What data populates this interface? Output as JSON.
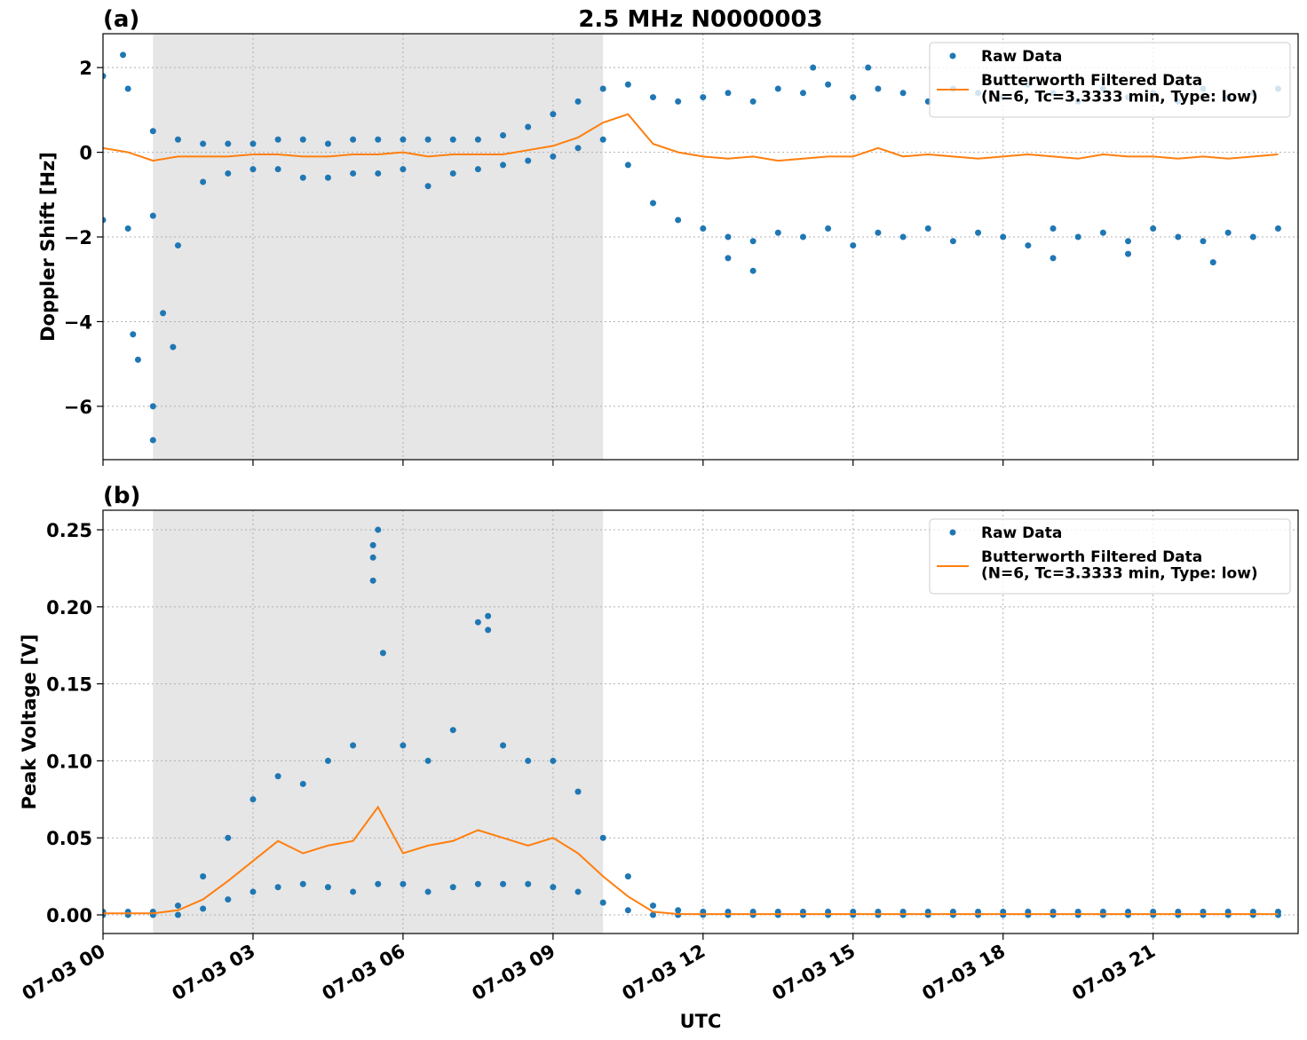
{
  "chart_data": [
    {
      "type": "scatter",
      "title": "2.5 MHz N0000003",
      "panel_label": "(a)",
      "y_label": "Doppler Shift [Hz]",
      "xlim": [
        0,
        23.9
      ],
      "ylim": [
        -7.26,
        2.8
      ],
      "xticks": [
        {
          "value": 0,
          "label": "07-03 00"
        },
        {
          "value": 3,
          "label": "07-03 03"
        },
        {
          "value": 6,
          "label": "07-03 06"
        },
        {
          "value": 9,
          "label": "07-03 09"
        },
        {
          "value": 12,
          "label": "07-03 12"
        },
        {
          "value": 15,
          "label": "07-03 15"
        },
        {
          "value": 18,
          "label": "07-03 18"
        },
        {
          "value": 21,
          "label": "07-03 21"
        }
      ],
      "xticklabels_visible": false,
      "yticks": [
        {
          "value": -6,
          "label": "−6"
        },
        {
          "value": -4,
          "label": "−4"
        },
        {
          "value": -2,
          "label": "−2"
        },
        {
          "value": 0,
          "label": "0"
        },
        {
          "value": 2,
          "label": "2"
        }
      ],
      "grid": true,
      "legend": "upper right",
      "shade": {
        "x0": 1.0,
        "x1": 10.0,
        "color": "#e6e6e6"
      },
      "series": [
        {
          "name": "Raw Data",
          "color": "#1f77b4",
          "style": "points",
          "x": [
            0,
            0.5,
            1,
            1.5,
            2,
            2.5,
            3,
            3.5,
            4,
            4.5,
            5,
            5.5,
            6,
            6.5,
            7,
            7.5,
            8,
            8.5,
            9,
            9.5,
            10,
            10.5,
            11,
            11.5,
            12,
            12.5,
            13,
            13.5,
            14,
            14.5,
            15,
            15.5,
            16,
            16.5,
            17,
            17.5,
            18,
            18.5,
            19,
            19.5,
            20,
            20.5,
            21,
            21.5,
            22,
            22.5,
            23,
            23.5,
            0,
            0.5,
            1,
            1.5,
            2,
            2.5,
            3,
            3.5,
            4,
            4.5,
            5,
            5.5,
            6,
            6.5,
            7,
            7.5,
            8,
            8.5,
            9,
            9.5,
            10,
            10.5,
            11,
            11.5,
            12,
            12.5,
            13,
            13.5,
            14,
            14.5,
            15,
            15.5,
            16,
            16.5,
            17,
            17.5,
            18,
            18.5,
            19,
            19.5,
            20,
            20.5,
            21,
            21.5,
            22,
            22.5,
            23,
            23.5,
            0.4,
            0.6,
            0.7,
            1.0,
            1.0,
            1.2,
            1.4,
            12.5,
            13.0,
            14.2,
            15.3,
            19.0,
            20.5,
            22.2
          ],
          "values": [
            1.8,
            1.5,
            0.5,
            0.3,
            0.2,
            0.2,
            0.2,
            0.3,
            0.3,
            0.2,
            0.3,
            0.3,
            0.3,
            0.3,
            0.3,
            0.3,
            0.4,
            0.6,
            0.9,
            1.2,
            1.5,
            1.6,
            1.3,
            1.2,
            1.3,
            1.4,
            1.2,
            1.5,
            1.4,
            1.6,
            1.3,
            1.5,
            1.4,
            1.2,
            1.5,
            1.4,
            1.3,
            1.6,
            1.4,
            1.2,
            1.5,
            1.3,
            1.4,
            1.2,
            1.5,
            1.3,
            1.4,
            1.5,
            -1.6,
            -1.8,
            -1.5,
            -2.2,
            -0.7,
            -0.5,
            -0.4,
            -0.4,
            -0.6,
            -0.6,
            -0.5,
            -0.5,
            -0.4,
            -0.8,
            -0.5,
            -0.4,
            -0.3,
            -0.2,
            -0.1,
            0.1,
            0.3,
            -0.3,
            -1.2,
            -1.6,
            -1.8,
            -2.0,
            -2.1,
            -1.9,
            -2.0,
            -1.8,
            -2.2,
            -1.9,
            -2.0,
            -1.8,
            -2.1,
            -1.9,
            -2.0,
            -2.2,
            -1.8,
            -2.0,
            -1.9,
            -2.1,
            -1.8,
            -2.0,
            -2.1,
            -1.9,
            -2.0,
            -1.8,
            2.3,
            -4.3,
            -4.9,
            -6.8,
            -6.0,
            -3.8,
            -4.6,
            -2.5,
            -2.8,
            2.0,
            2.0,
            -2.5,
            -2.4,
            -2.6
          ]
        },
        {
          "name": "Butterworth Filtered Data\n(N=6, Tc=3.3333 min, Type: low)",
          "color": "#ff7f0e",
          "style": "line",
          "x": [
            0,
            0.5,
            1,
            1.5,
            2,
            2.5,
            3,
            3.5,
            4,
            4.5,
            5,
            5.5,
            6,
            6.5,
            7,
            7.5,
            8,
            8.5,
            9,
            9.5,
            10,
            10.5,
            11,
            11.5,
            12,
            12.5,
            13,
            13.5,
            14,
            14.5,
            15,
            15.5,
            16,
            16.5,
            17,
            17.5,
            18,
            18.5,
            19,
            19.5,
            20,
            20.5,
            21,
            21.5,
            22,
            22.5,
            23,
            23.5
          ],
          "values": [
            0.1,
            0.0,
            -0.2,
            -0.1,
            -0.1,
            -0.1,
            -0.05,
            -0.05,
            -0.1,
            -0.1,
            -0.05,
            -0.05,
            0.0,
            -0.1,
            -0.05,
            -0.05,
            -0.05,
            0.05,
            0.15,
            0.35,
            0.7,
            0.9,
            0.2,
            0.0,
            -0.1,
            -0.15,
            -0.1,
            -0.2,
            -0.15,
            -0.1,
            -0.1,
            0.1,
            -0.1,
            -0.05,
            -0.1,
            -0.15,
            -0.1,
            -0.05,
            -0.1,
            -0.15,
            -0.05,
            -0.1,
            -0.1,
            -0.15,
            -0.1,
            -0.15,
            -0.1,
            -0.05
          ]
        }
      ]
    },
    {
      "type": "scatter",
      "panel_label": "(b)",
      "y_label": "Peak Voltage [V]",
      "x_label": "UTC",
      "xlim": [
        0,
        23.9
      ],
      "ylim": [
        -0.0121,
        0.2627
      ],
      "xticks": [
        {
          "value": 0,
          "label": "07-03 00"
        },
        {
          "value": 3,
          "label": "07-03 03"
        },
        {
          "value": 6,
          "label": "07-03 06"
        },
        {
          "value": 9,
          "label": "07-03 09"
        },
        {
          "value": 12,
          "label": "07-03 12"
        },
        {
          "value": 15,
          "label": "07-03 15"
        },
        {
          "value": 18,
          "label": "07-03 18"
        },
        {
          "value": 21,
          "label": "07-03 21"
        }
      ],
      "xticklabels_visible": true,
      "yticks": [
        {
          "value": 0,
          "label": "0.00"
        },
        {
          "value": 0.05,
          "label": "0.05"
        },
        {
          "value": 0.1,
          "label": "0.10"
        },
        {
          "value": 0.15,
          "label": "0.15"
        },
        {
          "value": 0.2,
          "label": "0.20"
        },
        {
          "value": 0.25,
          "label": "0.25"
        }
      ],
      "grid": true,
      "legend": "upper right",
      "shade": {
        "x0": 1.0,
        "x1": 10.0,
        "color": "#e6e6e6"
      },
      "series": [
        {
          "name": "Raw Data",
          "color": "#1f77b4",
          "style": "points",
          "x": [
            0,
            0.5,
            1,
            1.5,
            2,
            2.5,
            3,
            3.5,
            4,
            4.5,
            5,
            5.5,
            6,
            6.5,
            7,
            7.5,
            8,
            8.5,
            9,
            9.5,
            10,
            10.5,
            11,
            11.5,
            12,
            12.5,
            13,
            13.5,
            14,
            14.5,
            15,
            15.5,
            16,
            16.5,
            17,
            17.5,
            18,
            18.5,
            19,
            19.5,
            20,
            20.5,
            21,
            21.5,
            22,
            22.5,
            23,
            23.5,
            0,
            0.5,
            1,
            1.5,
            2,
            2.5,
            3,
            3.5,
            4,
            4.5,
            5,
            5.5,
            6,
            6.5,
            7,
            7.5,
            8,
            8.5,
            9,
            9.5,
            10,
            10.5,
            11,
            11.5,
            12,
            12.5,
            13,
            13.5,
            14,
            14.5,
            15,
            15.5,
            16,
            16.5,
            17,
            17.5,
            18,
            18.5,
            19,
            19.5,
            20,
            20.5,
            21,
            21.5,
            22,
            22.5,
            23,
            23.5,
            5.4,
            5.4,
            5.4,
            7.7,
            7.7,
            5.6
          ],
          "values": [
            0.002,
            0.002,
            0.002,
            0.006,
            0.025,
            0.05,
            0.075,
            0.09,
            0.085,
            0.1,
            0.11,
            0.25,
            0.11,
            0.1,
            0.12,
            0.19,
            0.11,
            0.1,
            0.1,
            0.08,
            0.05,
            0.025,
            0.006,
            0.003,
            0.002,
            0.002,
            0.002,
            0.002,
            0.002,
            0.002,
            0.002,
            0.002,
            0.002,
            0.002,
            0.002,
            0.002,
            0.002,
            0.002,
            0.002,
            0.002,
            0.002,
            0.002,
            0.002,
            0.002,
            0.002,
            0.002,
            0.002,
            0.002,
            0,
            0,
            0,
            0,
            0.004,
            0.01,
            0.015,
            0.018,
            0.02,
            0.018,
            0.015,
            0.02,
            0.02,
            0.015,
            0.018,
            0.02,
            0.02,
            0.02,
            0.018,
            0.015,
            0.008,
            0.003,
            0,
            0,
            0,
            0,
            0,
            0,
            0,
            0,
            0,
            0,
            0,
            0,
            0,
            0,
            0,
            0,
            0,
            0,
            0,
            0,
            0,
            0,
            0,
            0,
            0,
            0,
            0.24,
            0.232,
            0.217,
            0.194,
            0.185,
            0.17
          ]
        },
        {
          "name": "Butterworth Filtered Data\n(N=6, Tc=3.3333 min, Type: low)",
          "color": "#ff7f0e",
          "style": "line",
          "x": [
            0,
            0.5,
            1,
            1.5,
            2,
            2.5,
            3,
            3.5,
            4,
            4.5,
            5,
            5.5,
            6,
            6.5,
            7,
            7.5,
            8,
            8.5,
            9,
            9.5,
            10,
            10.5,
            11,
            11.5,
            12,
            12.5,
            13,
            13.5,
            14,
            14.5,
            15,
            15.5,
            16,
            16.5,
            17,
            17.5,
            18,
            18.5,
            19,
            19.5,
            20,
            20.5,
            21,
            21.5,
            22,
            22.5,
            23,
            23.5
          ],
          "values": [
            0.001,
            0.001,
            0.001,
            0.003,
            0.01,
            0.022,
            0.035,
            0.048,
            0.04,
            0.045,
            0.048,
            0.07,
            0.04,
            0.045,
            0.048,
            0.055,
            0.05,
            0.045,
            0.05,
            0.04,
            0.025,
            0.012,
            0.002,
            0.0005,
            0.0005,
            0.0005,
            0.0005,
            0.0005,
            0.0005,
            0.0005,
            0.0005,
            0.0005,
            0.0005,
            0.0005,
            0.0005,
            0.0005,
            0.0005,
            0.0005,
            0.0005,
            0.0005,
            0.0005,
            0.0005,
            0.0005,
            0.0005,
            0.0005,
            0.0005,
            0.0005,
            0.0005
          ]
        }
      ]
    }
  ]
}
